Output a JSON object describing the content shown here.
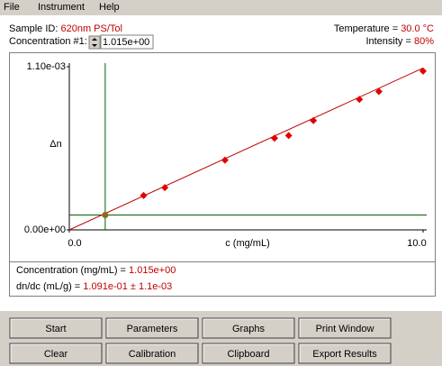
{
  "menu": [
    "File",
    "Instrument",
    "Help"
  ],
  "header": {
    "sample_id_label": "Sample ID:",
    "sample_id": "620nm PS/Tol",
    "concentration_label": "Concentration #1:",
    "concentration_input": "1.015e+00",
    "temperature_label": "Temperature =",
    "temperature": "30.0 °C",
    "intensity_label": "Intensity =",
    "intensity": "80%"
  },
  "chart_data": {
    "type": "scatter",
    "y_label": "Δn",
    "x_label": "c (mg/mL)",
    "xlim": [
      0,
      10
    ],
    "ylim": [
      0,
      0.0011
    ],
    "xticks": [
      {
        "value": 0,
        "label": "0.0"
      },
      {
        "value": 10,
        "label": "10.0"
      }
    ],
    "yticks": [
      {
        "value": 0,
        "label": "0.00e+00"
      },
      {
        "value": 0.0011,
        "label": "1.10e-03"
      }
    ],
    "points": {
      "color": "#e00000",
      "x": [
        2.1,
        2.7,
        4.4,
        5.8,
        6.2,
        6.9,
        8.2,
        8.75,
        10.0
      ],
      "y": [
        0.000232,
        0.000285,
        0.00047,
        0.000618,
        0.000636,
        0.000737,
        0.00088,
        0.000933,
        0.00107
      ]
    },
    "fit": {
      "color": "#c00000",
      "x": [
        0,
        10
      ],
      "y": [
        0,
        0.001091
      ]
    },
    "cursor": {
      "color": "#006000",
      "marker": "#8b6a1a",
      "x": 1.015,
      "y": 0.0001
    }
  },
  "results": {
    "concentration_label": "Concentration (mg/mL) =",
    "concentration": "1.015e+00",
    "dndc_label": "dn/dc (mL/g) =",
    "dndc": "1.091e-01 ± 1.1e-03"
  },
  "buttons": [
    "Start",
    "Parameters",
    "Graphs",
    "Print Window",
    "Clear",
    "Calibration",
    "Clipboard",
    "Export Results"
  ]
}
